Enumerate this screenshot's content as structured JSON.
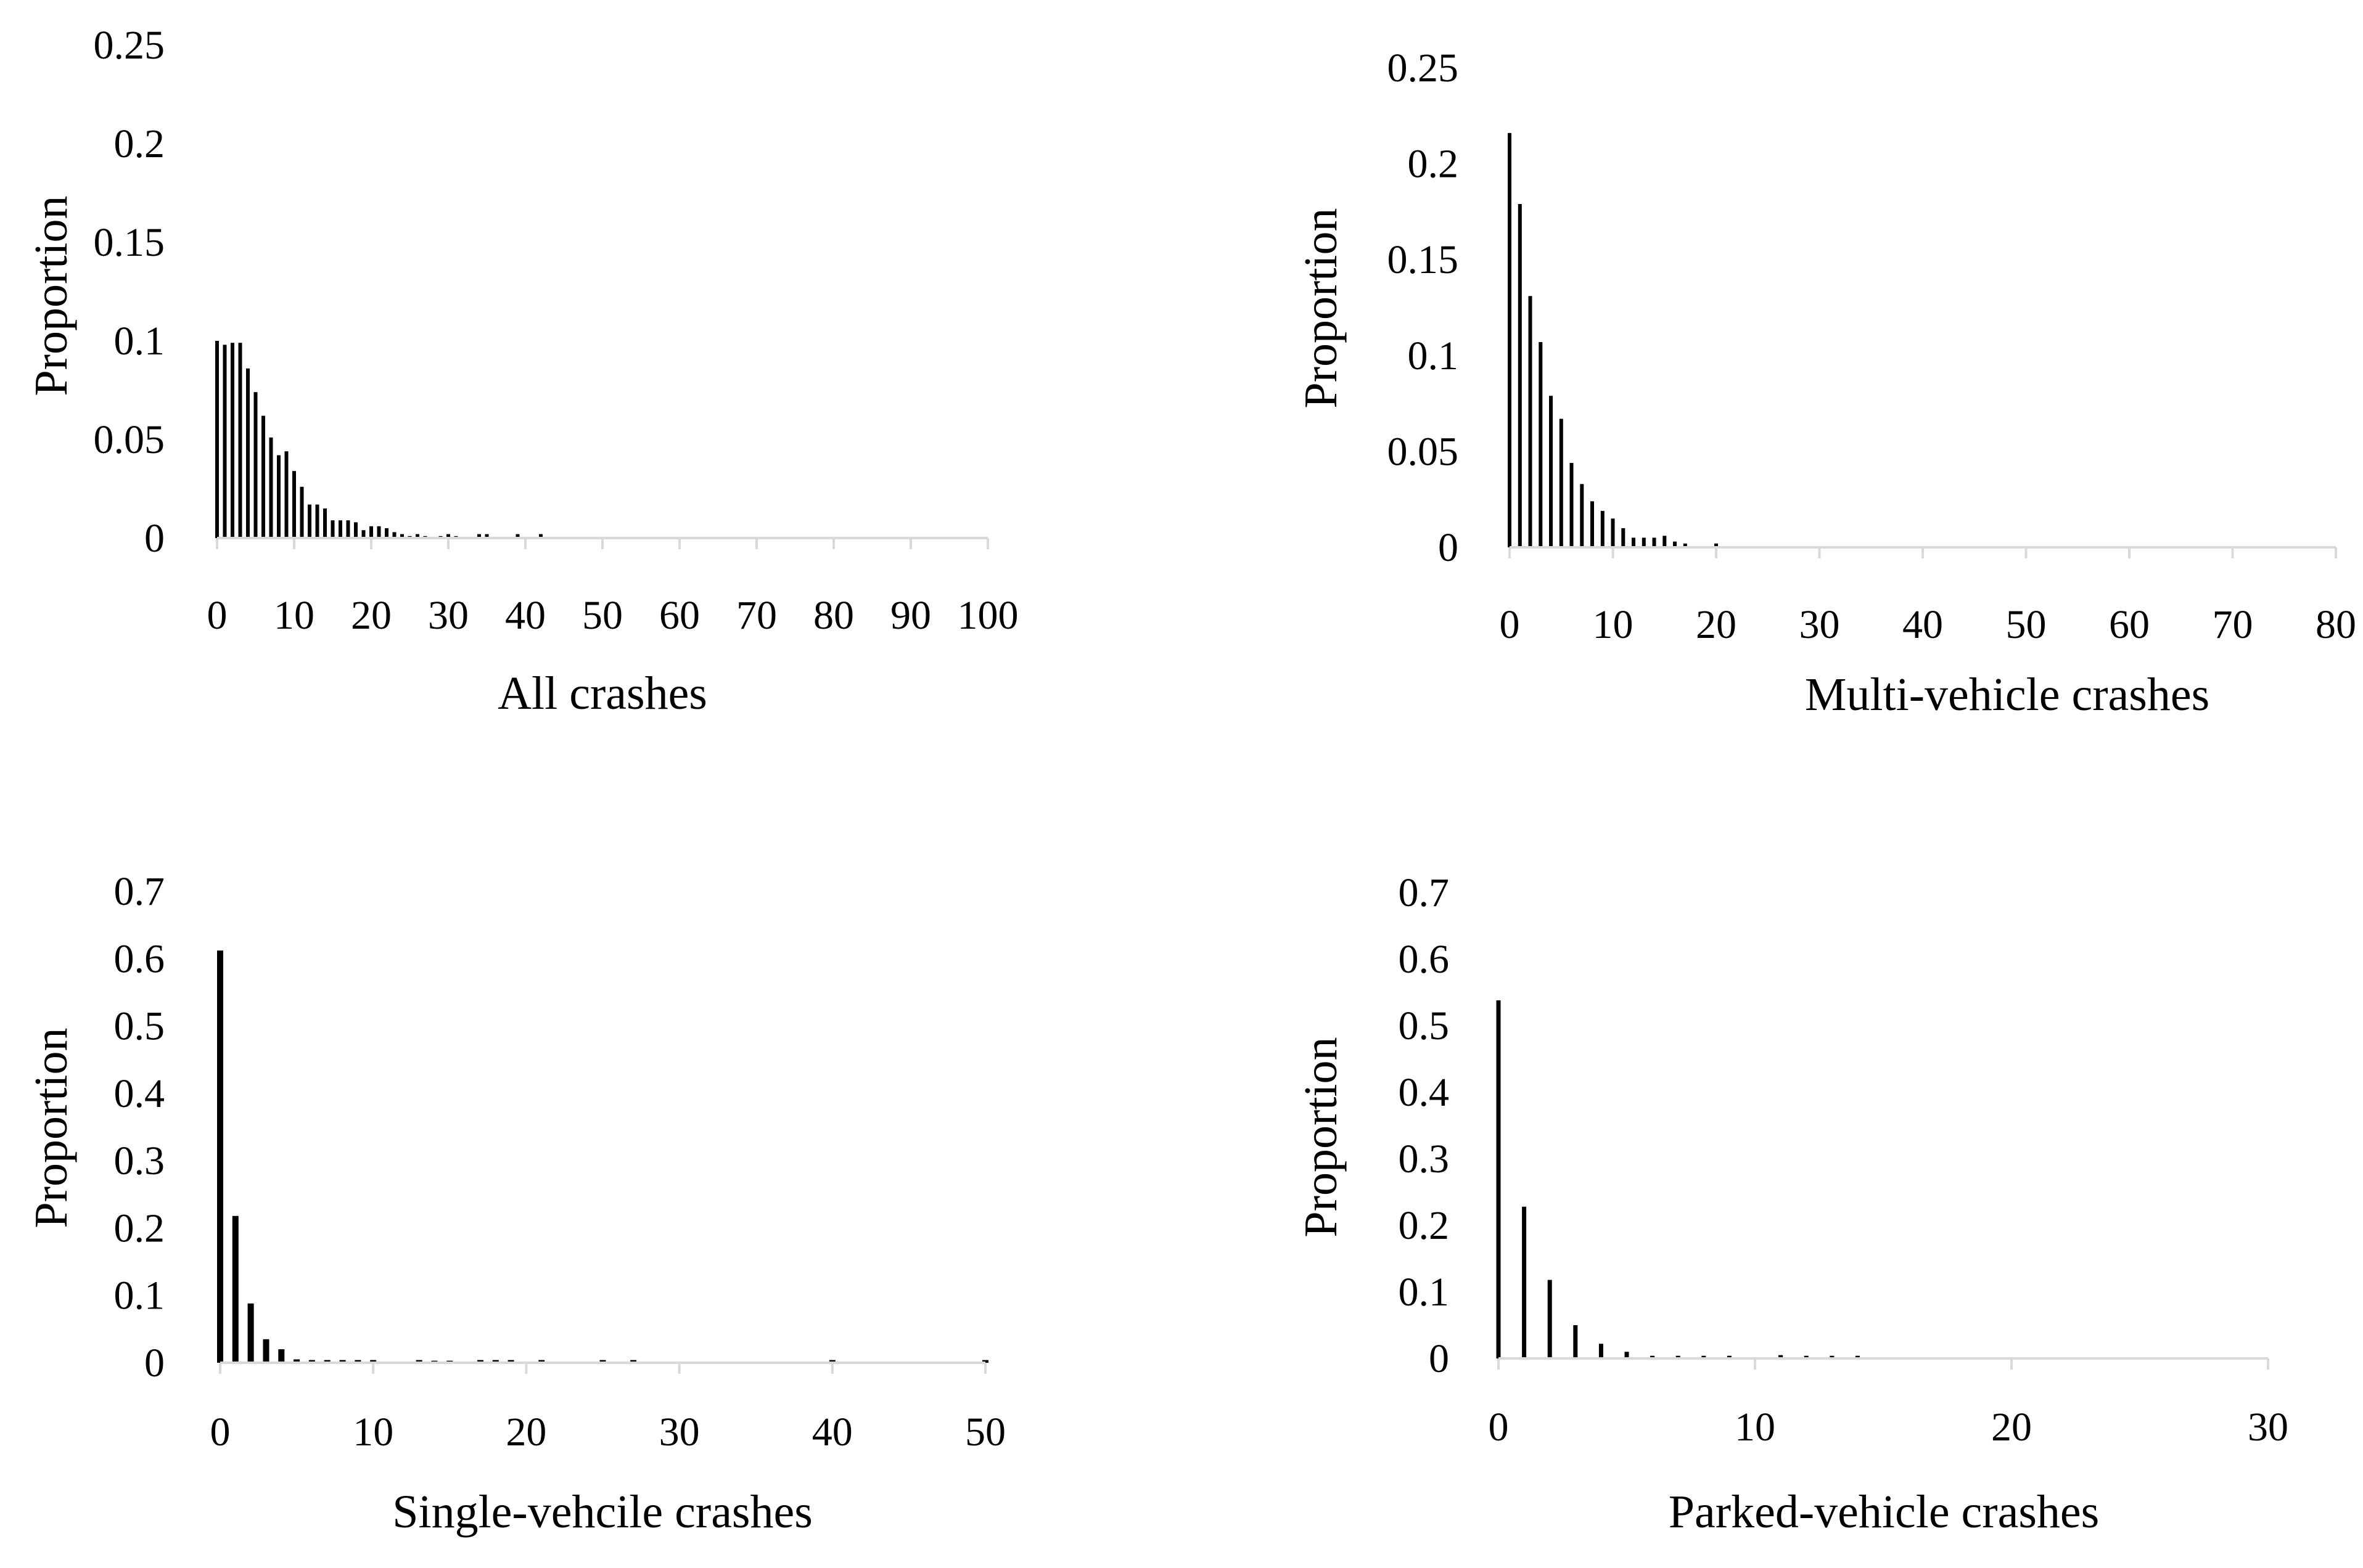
{
  "chart_data": [
    {
      "type": "bar",
      "title": "",
      "xlabel": "All crashes",
      "ylabel": "Proportion",
      "xlim": [
        0,
        100
      ],
      "ylim": [
        0,
        0.25
      ],
      "grid": false,
      "x_ticks": [
        0,
        10,
        20,
        30,
        40,
        50,
        60,
        70,
        80,
        90,
        100
      ],
      "y_ticks": [
        0,
        0.05,
        0.1,
        0.15,
        0.2,
        0.25
      ],
      "y_tick_labels": [
        "0",
        "0.05",
        "0.1",
        "0.15",
        "0.2",
        "0.25"
      ],
      "x": [
        0,
        1,
        2,
        3,
        4,
        5,
        6,
        7,
        8,
        9,
        10,
        11,
        12,
        13,
        14,
        15,
        16,
        17,
        18,
        19,
        20,
        21,
        22,
        23,
        24,
        25,
        26,
        27,
        29,
        30,
        31,
        34,
        35,
        39,
        42
      ],
      "values": [
        0.1,
        0.098,
        0.099,
        0.099,
        0.086,
        0.074,
        0.062,
        0.051,
        0.042,
        0.044,
        0.034,
        0.026,
        0.017,
        0.017,
        0.015,
        0.009,
        0.009,
        0.009,
        0.008,
        0.004,
        0.006,
        0.006,
        0.005,
        0.003,
        0.002,
        0.001,
        0.002,
        0.001,
        0.001,
        0.002,
        0.001,
        0.002,
        0.002,
        0.002,
        0.002
      ]
    },
    {
      "type": "bar",
      "title": "",
      "xlabel": "Multi-vehicle crashes",
      "ylabel": "Proportion",
      "xlim": [
        0,
        80
      ],
      "ylim": [
        0,
        0.25
      ],
      "grid": false,
      "x_ticks": [
        0,
        10,
        20,
        30,
        40,
        50,
        60,
        70,
        80
      ],
      "y_ticks": [
        0,
        0.05,
        0.1,
        0.15,
        0.2,
        0.25
      ],
      "y_tick_labels": [
        "0",
        "0.05",
        "0.1",
        "0.15",
        "0.2",
        "0.25"
      ],
      "x": [
        0,
        1,
        2,
        3,
        4,
        5,
        6,
        7,
        8,
        9,
        10,
        11,
        12,
        13,
        14,
        15,
        16,
        17,
        20
      ],
      "values": [
        0.216,
        0.179,
        0.131,
        0.107,
        0.079,
        0.067,
        0.044,
        0.033,
        0.024,
        0.019,
        0.015,
        0.01,
        0.005,
        0.005,
        0.005,
        0.006,
        0.003,
        0.002,
        0.002
      ]
    },
    {
      "type": "bar",
      "title": "",
      "xlabel": "Single-vehcile crashes",
      "ylabel": "Proportion",
      "xlim": [
        0,
        50
      ],
      "ylim": [
        0,
        0.7
      ],
      "grid": false,
      "x_ticks": [
        0,
        10,
        20,
        30,
        40,
        50
      ],
      "y_ticks": [
        0,
        0.1,
        0.2,
        0.3,
        0.4,
        0.5,
        0.6,
        0.7
      ],
      "y_tick_labels": [
        "0",
        "0.1",
        "0.2",
        "0.3",
        "0.4",
        "0.5",
        "0.6",
        "0.7"
      ],
      "x": [
        0,
        1,
        2,
        3,
        4,
        5,
        6,
        7,
        8,
        9,
        10,
        13,
        14,
        15,
        17,
        18,
        19,
        21,
        25,
        27,
        40,
        50
      ],
      "values": [
        0.612,
        0.218,
        0.088,
        0.035,
        0.02,
        0.005,
        0.004,
        0.004,
        0.004,
        0.004,
        0.004,
        0.004,
        0.003,
        0.003,
        0.004,
        0.004,
        0.004,
        0.004,
        0.004,
        0.004,
        0.004,
        0.004
      ]
    },
    {
      "type": "bar",
      "title": "",
      "xlabel": "Parked-vehicle crashes",
      "ylabel": "Proportion",
      "xlim": [
        0,
        30
      ],
      "ylim": [
        0,
        0.7
      ],
      "grid": false,
      "x_ticks": [
        0,
        10,
        20,
        30
      ],
      "y_ticks": [
        0,
        0.1,
        0.2,
        0.3,
        0.4,
        0.5,
        0.6,
        0.7
      ],
      "y_tick_labels": [
        "0",
        "0.1",
        "0.2",
        "0.3",
        "0.4",
        "0.5",
        "0.6",
        "0.7"
      ],
      "x": [
        0,
        1,
        2,
        3,
        4,
        5,
        6,
        7,
        8,
        9,
        11,
        12,
        13,
        14
      ],
      "values": [
        0.538,
        0.228,
        0.118,
        0.05,
        0.022,
        0.01,
        0.004,
        0.004,
        0.004,
        0.004,
        0.005,
        0.004,
        0.004,
        0.004
      ]
    }
  ]
}
